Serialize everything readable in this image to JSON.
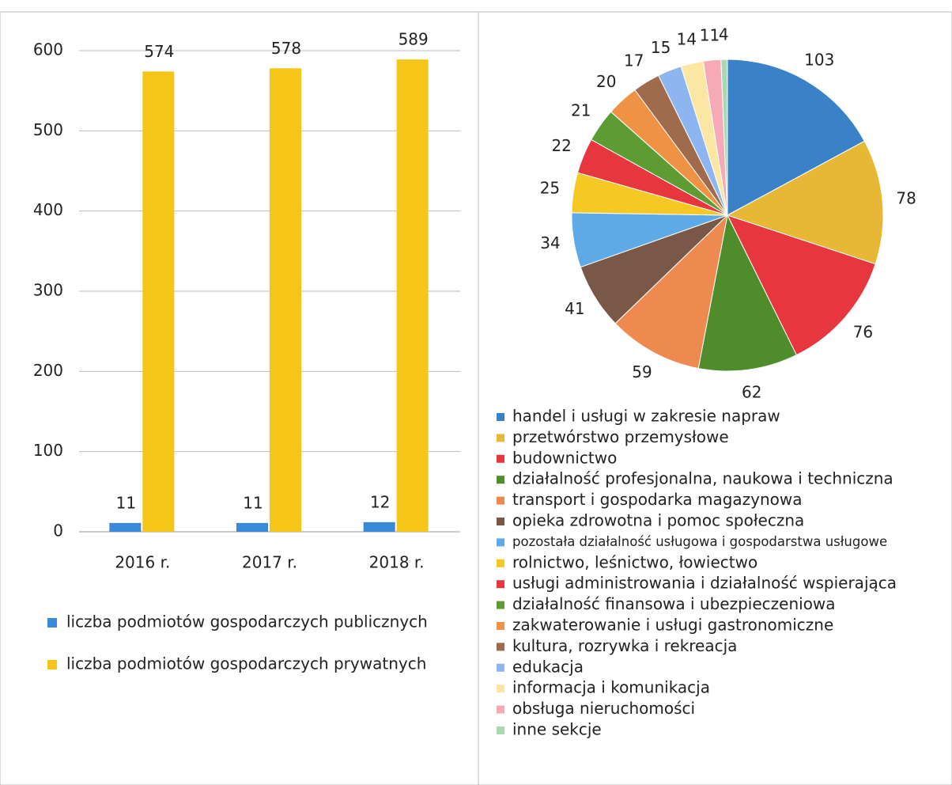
{
  "chart_data": [
    {
      "type": "bar",
      "categories": [
        "2016 r.",
        "2017 r.",
        "2018 r."
      ],
      "series": [
        {
          "name": "liczba podmiotów gospodarczych publicznych",
          "color": "#3a8ad8",
          "values": [
            11,
            11,
            12
          ]
        },
        {
          "name": "liczba podmiotów gospodarczych prywatnych",
          "color": "#f5c518",
          "values": [
            574,
            578,
            589
          ]
        }
      ],
      "ylim": [
        0,
        600
      ],
      "yticks": [
        0,
        100,
        200,
        300,
        400,
        500,
        600
      ],
      "grid": true
    },
    {
      "type": "pie",
      "categories": [
        "handel i usługi w zakresie napraw",
        "przetwórstwo przemysłowe",
        "budownictwo",
        "działalność profesjonalna, naukowa i techniczna",
        "transport i gospodarka magazynowa",
        "opieka zdrowotna i pomoc społeczna",
        "pozostała działalność usługowa i gospodarstwa usługowe",
        "rolnictwo, leśnictwo, łowiectwo",
        "usługi administrowania i działalność wspierająca",
        "działalność finansowa i ubezpieczeniowa",
        "zakwaterowanie i usługi gastronomiczne",
        "kultura, rozrywka i rekreacja",
        "edukacja",
        "informacja i komunikacja",
        "obsługa nieruchomości",
        "inne sekcje"
      ],
      "values": [
        103,
        78,
        76,
        62,
        59,
        41,
        34,
        25,
        22,
        21,
        20,
        17,
        15,
        14,
        11,
        4
      ],
      "colors": [
        "#3a82c8",
        "#e6b835",
        "#e8363e",
        "#4e8c2c",
        "#ee8a50",
        "#7a5848",
        "#5eaae6",
        "#f5c824",
        "#e8363e",
        "#5c9c32",
        "#ef9244",
        "#a06a4c",
        "#8db6f0",
        "#fbe6a4",
        "#f5aab6",
        "#a9d9b2"
      ]
    }
  ]
}
